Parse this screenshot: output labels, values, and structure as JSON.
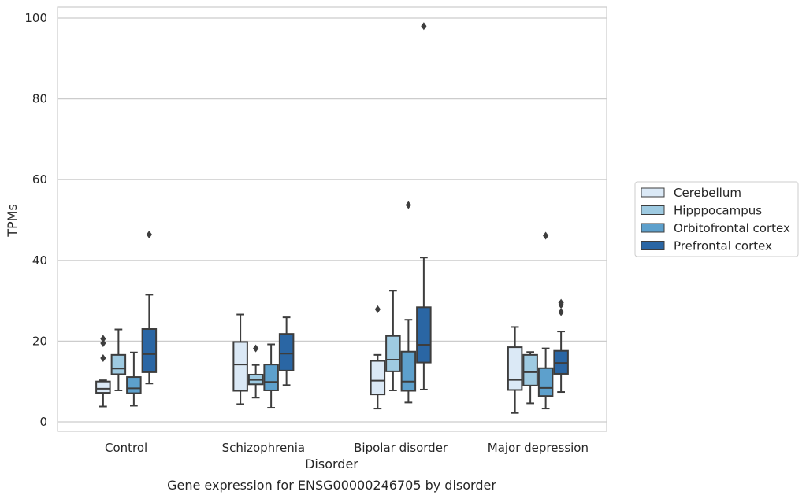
{
  "chart_data": {
    "type": "box",
    "title": "",
    "caption": "Gene expression for ENSG00000246705 by disorder",
    "xlabel": "Disorder",
    "ylabel": "TPMs",
    "ylim": [
      -2,
      103
    ],
    "yticks": [
      0,
      20,
      40,
      60,
      80,
      100
    ],
    "grid": "horizontal",
    "legend_position": "right",
    "categories": [
      "Control",
      "Schizophrenia",
      "Bipolar disorder",
      "Major depression"
    ],
    "series": [
      {
        "name": "Cerebellum",
        "color": "#dbe9f6",
        "boxes": [
          {
            "whisker_low": 3.8,
            "q1": 7.2,
            "median": 8.2,
            "q3": 10.0,
            "whisker_high": 10.3,
            "outliers": [
              15.8,
              19.5,
              20.6
            ]
          },
          {
            "whisker_low": 4.4,
            "q1": 7.7,
            "median": 14.2,
            "q3": 19.8,
            "whisker_high": 26.6,
            "outliers": []
          },
          {
            "whisker_low": 3.3,
            "q1": 6.8,
            "median": 10.2,
            "q3": 15.1,
            "whisker_high": 16.6,
            "outliers": [
              27.9
            ]
          },
          {
            "whisker_low": 2.2,
            "q1": 7.9,
            "median": 10.4,
            "q3": 18.5,
            "whisker_high": 23.5,
            "outliers": []
          }
        ]
      },
      {
        "name": "Hipppocampus",
        "color": "#9ecae1",
        "boxes": [
          {
            "whisker_low": 7.8,
            "q1": 11.8,
            "median": 13.2,
            "q3": 16.6,
            "whisker_high": 22.9,
            "outliers": []
          },
          {
            "whisker_low": 6.0,
            "q1": 9.3,
            "median": 10.4,
            "q3": 11.7,
            "whisker_high": 14.1,
            "outliers": [
              18.2
            ]
          },
          {
            "whisker_low": 7.8,
            "q1": 12.5,
            "median": 15.4,
            "q3": 21.3,
            "whisker_high": 32.5,
            "outliers": []
          },
          {
            "whisker_low": 4.6,
            "q1": 9.0,
            "median": 12.3,
            "q3": 16.6,
            "whisker_high": 17.3,
            "outliers": []
          }
        ]
      },
      {
        "name": "Orbitofrontal cortex",
        "color": "#5da0cc",
        "boxes": [
          {
            "whisker_low": 4.0,
            "q1": 7.1,
            "median": 8.3,
            "q3": 11.1,
            "whisker_high": 17.2,
            "outliers": []
          },
          {
            "whisker_low": 3.5,
            "q1": 7.8,
            "median": 9.9,
            "q3": 14.2,
            "whisker_high": 19.2,
            "outliers": []
          },
          {
            "whisker_low": 4.8,
            "q1": 7.7,
            "median": 10.0,
            "q3": 17.4,
            "whisker_high": 25.3,
            "outliers": [
              53.7
            ]
          },
          {
            "whisker_low": 3.3,
            "q1": 6.4,
            "median": 8.4,
            "q3": 13.3,
            "whisker_high": 18.2,
            "outliers": [
              46.1
            ]
          }
        ]
      },
      {
        "name": "Prefrontal cortex",
        "color": "#2a66a4",
        "boxes": [
          {
            "whisker_low": 9.5,
            "q1": 12.3,
            "median": 16.8,
            "q3": 23.0,
            "whisker_high": 31.5,
            "outliers": [
              46.4
            ]
          },
          {
            "whisker_low": 9.1,
            "q1": 12.7,
            "median": 16.9,
            "q3": 21.8,
            "whisker_high": 25.9,
            "outliers": []
          },
          {
            "whisker_low": 8.0,
            "q1": 14.7,
            "median": 19.1,
            "q3": 28.4,
            "whisker_high": 40.7,
            "outliers": [
              98.0
            ]
          },
          {
            "whisker_low": 7.4,
            "q1": 11.9,
            "median": 14.6,
            "q3": 17.6,
            "whisker_high": 22.4,
            "outliers": [
              27.2,
              29.0,
              29.5
            ]
          }
        ]
      }
    ]
  }
}
